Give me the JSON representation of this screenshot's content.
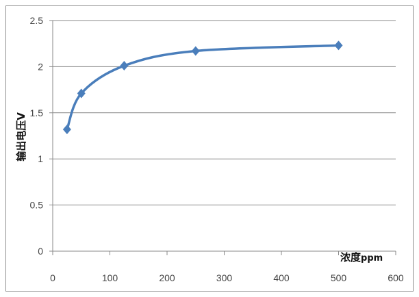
{
  "chart_data": {
    "type": "line",
    "x": [
      25,
      50,
      125,
      250,
      500
    ],
    "series": [
      {
        "values": [
          1.32,
          1.71,
          2.01,
          2.17,
          2.23
        ],
        "color": "#4a7ebb",
        "marker": "diamond",
        "smooth": true
      }
    ],
    "xlabel": "浓度",
    "xlabel_unit": "ppm",
    "ylabel": "输出电压V",
    "xlim": [
      0,
      600
    ],
    "ylim": [
      0,
      2.5
    ],
    "xticks": [
      "0",
      "100",
      "200",
      "300",
      "400",
      "500",
      "600"
    ],
    "yticks": [
      "0",
      "0.5",
      "1",
      "1.5",
      "2",
      "2.5"
    ],
    "grid": "horizontal",
    "legend": "none"
  }
}
